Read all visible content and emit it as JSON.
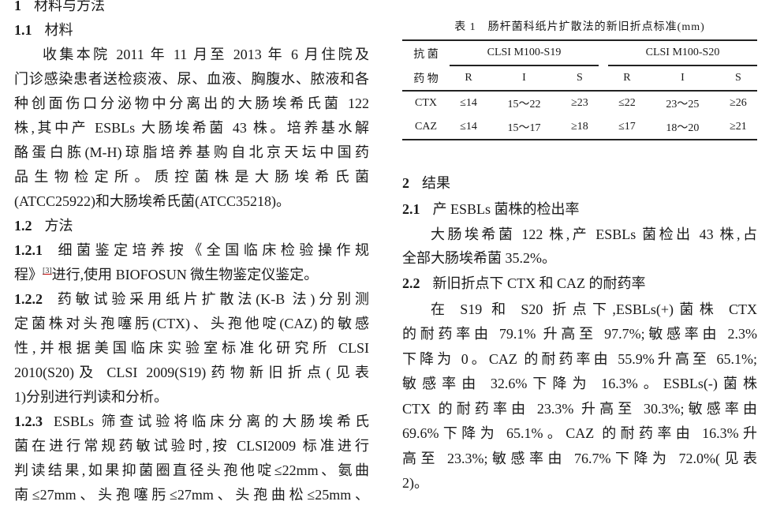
{
  "left": [
    {
      "num": "1",
      "text": "材料与方法",
      "head": true
    },
    {
      "num": "1.1",
      "text": "材料",
      "head": true
    },
    {
      "text": "收集本院 2011 年 11 月至 2013 年 6 月住院及",
      "indent": true,
      "justify": true
    },
    {
      "text": "门诊感染患者送检痰液、尿、血液、胸腹水、脓液和各",
      "justify": true
    },
    {
      "text": "种创面伤口分泌物中分离出的大肠埃希氏菌 122",
      "justify": true
    },
    {
      "text": "株,其中产 ESBLs 大肠埃希菌 43 株。培养基水解",
      "justify": true
    },
    {
      "text": "酪蛋白胨(M-H)琼脂培养基购自北京天坛中国药",
      "justify": true
    },
    {
      "text": "品生物检定所。质控菌株是大肠埃希氏菌",
      "justify": true
    },
    {
      "text": "(ATCC25922)和大肠埃希氏菌(ATCC35218)。"
    },
    {
      "num": "1.2",
      "text": "方法",
      "head": true
    },
    {
      "num": "1.2.1",
      "text": "细菌鉴定培养按《全国临床检验操作规",
      "justify": true
    },
    {
      "text": "程》",
      "sup": "[3]",
      "after": "进行,使用 BIOFOSUN 微生物鉴定仪鉴定。"
    },
    {
      "num": "1.2.2",
      "text": "药敏试验采用纸片扩散法(K-B 法)分别测",
      "justify": true
    },
    {
      "text": "定菌株对头孢噻肟(CTX)、头孢他啶(CAZ)的敏感",
      "justify": true
    },
    {
      "text": "性,并根据美国临床实验室标准化研究所 CLSI",
      "justify": true
    },
    {
      "text": "2010(S20)及 CLSI 2009(S19)药物新旧折点(见表",
      "justify": true
    },
    {
      "text": "1)分别进行判读和分析。"
    },
    {
      "num": "1.2.3",
      "text": "ESBLs 筛查试验将临床分离的大肠埃希氏",
      "justify": true
    },
    {
      "text": "菌在进行常规药敏试验时,按 CLSI2009 标准进行",
      "justify": true
    },
    {
      "text": "判读结果,如果抑菌圈直径头孢他啶≤22mm、氨曲",
      "justify": true
    },
    {
      "text": "南≤27mm、头孢噻肟≤27mm、头孢曲松≤25mm、",
      "justify": true
    }
  ],
  "table": {
    "caption": "表 1　肠杆菌科纸片扩散法的新旧折点标准(mm)",
    "drug_header_1": "抗 菌",
    "drug_header_2": "药 物",
    "groups": [
      "CLSI M100-S19",
      "CLSI M100-S20"
    ],
    "cols": [
      "R",
      "I",
      "S",
      "R",
      "I",
      "S"
    ],
    "rows": [
      {
        "drug": "CTX",
        "values": [
          "≤14",
          "15～22",
          "≥23",
          "≤22",
          "23～25",
          "≥26"
        ]
      },
      {
        "drug": "CAZ",
        "values": [
          "≤14",
          "15～17",
          "≥18",
          "≤17",
          "18～20",
          "≥21"
        ]
      }
    ]
  },
  "right": [
    {
      "num": "2",
      "text": "结果",
      "head": true
    },
    {
      "num": "2.1",
      "text": "产 ESBLs 菌株的检出率",
      "head": true
    },
    {
      "text": "大肠埃希菌 122 株,产 ESBLs 菌检出 43 株,占",
      "indent": true,
      "justify": true
    },
    {
      "text": "全部大肠埃希菌 35.2%。"
    },
    {
      "num": "2.2",
      "text": "新旧折点下 CTX 和 CAZ 的耐药率",
      "head": true
    },
    {
      "text": "在 S19 和 S20 折点下,ESBLs(+)菌株 CTX",
      "indent": true,
      "justify": true
    },
    {
      "text": "的耐药率由 79.1% 升高至 97.7%;敏感率由 2.3%",
      "justify": true
    },
    {
      "text": "下降为 0。CAZ 的耐药率由 55.9%升高至 65.1%;",
      "justify": true
    },
    {
      "text": "敏感率由 32.6%下降为 16.3%。ESBLs(-)菌株",
      "justify": true
    },
    {
      "text": "CTX 的耐药率由 23.3% 升高至 30.3%;敏感率由",
      "justify": true
    },
    {
      "text": "69.6%下降为 65.1%。CAZ 的耐药率由 16.3%升",
      "justify": true
    },
    {
      "text": "高至 23.3%;敏感率由 76.7%下降为 72.0%(见表",
      "justify": true
    },
    {
      "text": "2)。"
    }
  ]
}
